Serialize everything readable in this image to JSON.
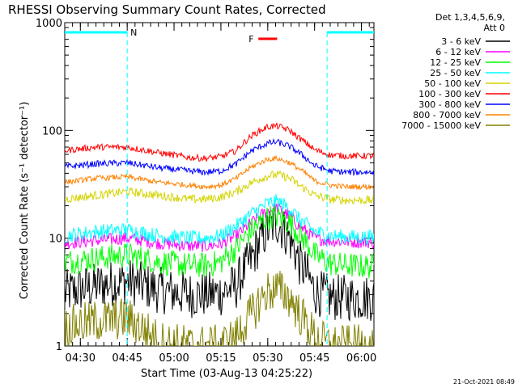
{
  "chart_data": {
    "type": "line",
    "title": "RHESSI Observing Summary Count Rates, Corrected",
    "xlabel": "Start Time (03-Aug-13 04:25:22)",
    "ylabel": "Corrected Count Rate (s⁻¹ detector⁻¹)",
    "yscale": "log",
    "ylim": [
      1,
      1000
    ],
    "y_ticks": [
      {
        "value": 1,
        "label": "1"
      },
      {
        "value": 10,
        "label": "10"
      },
      {
        "value": 100,
        "label": "100"
      },
      {
        "value": 1000,
        "label": "1000"
      }
    ],
    "xlim_minutes": [
      0,
      99
    ],
    "x_ticks": [
      {
        "minute": 5,
        "label": "04:30"
      },
      {
        "minute": 20,
        "label": "04:45"
      },
      {
        "minute": 35,
        "label": "05:00"
      },
      {
        "minute": 50,
        "label": "05:15"
      },
      {
        "minute": 65,
        "label": "05:30"
      },
      {
        "minute": 80,
        "label": "05:45"
      },
      {
        "minute": 95,
        "label": "06:00"
      }
    ],
    "legend_header": [
      "Det 1,3,4,5,6,9,",
      "Att 0"
    ],
    "series": [
      {
        "name": "3 - 6 keV",
        "color": "#000000",
        "noise": 0.22,
        "x": [
          0,
          10,
          20,
          30,
          40,
          45,
          50,
          55,
          60,
          65,
          68,
          72,
          75,
          80,
          85,
          90,
          95,
          99
        ],
        "y": [
          3.1,
          3.6,
          4.0,
          3.3,
          3.0,
          3.0,
          3.1,
          3.6,
          6.5,
          12,
          14,
          10,
          6.0,
          3.2,
          2.8,
          2.8,
          2.8,
          2.8
        ]
      },
      {
        "name": "6 - 12 keV",
        "color": "#ff00ff",
        "noise": 0.06,
        "x": [
          0,
          10,
          20,
          30,
          40,
          45,
          50,
          55,
          60,
          65,
          68,
          72,
          75,
          80,
          85,
          90,
          95,
          99
        ],
        "y": [
          9.0,
          9.5,
          10.0,
          9.0,
          8.5,
          8.5,
          8.8,
          10.5,
          14,
          18,
          19,
          16,
          13,
          10,
          9.5,
          9.3,
          9.2,
          9.2
        ]
      },
      {
        "name": "12 - 25 keV",
        "color": "#00ff00",
        "noise": 0.12,
        "x": [
          0,
          10,
          20,
          30,
          40,
          45,
          50,
          55,
          60,
          65,
          68,
          72,
          75,
          80,
          85,
          90,
          95,
          99
        ],
        "y": [
          6.0,
          6.5,
          7.0,
          6.0,
          5.6,
          5.6,
          6.0,
          8.0,
          12,
          15.5,
          16,
          14,
          11,
          7.0,
          5.8,
          5.6,
          5.5,
          5.5
        ]
      },
      {
        "name": "25 - 50 keV",
        "color": "#00ffff",
        "noise": 0.07,
        "x": [
          0,
          10,
          20,
          30,
          40,
          45,
          50,
          55,
          60,
          65,
          68,
          72,
          75,
          80,
          85,
          90,
          95,
          99
        ],
        "y": [
          10.5,
          11.5,
          12.0,
          10.5,
          10.0,
          10.0,
          10.5,
          13,
          17,
          21,
          22,
          19,
          15,
          11.5,
          10.5,
          10.3,
          10.2,
          10.2
        ]
      },
      {
        "name": "50 - 100 keV",
        "color": "#d4d400",
        "noise": 0.04,
        "x": [
          0,
          10,
          20,
          30,
          40,
          45,
          50,
          55,
          60,
          65,
          68,
          72,
          75,
          80,
          85,
          90,
          95,
          99
        ],
        "y": [
          23,
          25,
          27,
          25,
          23,
          23,
          24,
          27,
          33,
          38,
          39,
          36,
          31,
          25,
          23,
          22.5,
          22.5,
          22.5
        ]
      },
      {
        "name": "100 - 300 keV",
        "color": "#ff0000",
        "noise": 0.03,
        "x": [
          0,
          10,
          20,
          30,
          40,
          45,
          50,
          55,
          60,
          65,
          68,
          72,
          75,
          80,
          85,
          90,
          95,
          99
        ],
        "y": [
          65,
          70,
          70,
          62,
          56,
          55,
          57,
          65,
          90,
          108,
          110,
          100,
          85,
          66,
          59,
          58,
          58,
          58
        ]
      },
      {
        "name": "300 - 800 keV",
        "color": "#0000ff",
        "noise": 0.03,
        "x": [
          0,
          10,
          20,
          30,
          40,
          45,
          50,
          55,
          60,
          65,
          68,
          72,
          75,
          80,
          85,
          90,
          95,
          99
        ],
        "y": [
          46,
          49,
          50,
          45,
          42,
          41,
          42,
          49,
          65,
          76,
          78,
          71,
          62,
          47,
          42,
          41,
          41,
          41
        ]
      },
      {
        "name": "800 - 7000 keV",
        "color": "#ff8000",
        "noise": 0.025,
        "x": [
          0,
          10,
          20,
          30,
          40,
          45,
          50,
          55,
          60,
          65,
          68,
          72,
          75,
          80,
          85,
          90,
          95,
          99
        ],
        "y": [
          33,
          36,
          37,
          33,
          31,
          30,
          31,
          36,
          46,
          54,
          55,
          50,
          44,
          34,
          31,
          30,
          30,
          30
        ]
      },
      {
        "name": "7000 - 15000 keV",
        "color": "#808000",
        "noise": 0.2,
        "x": [
          0,
          10,
          20,
          30,
          40,
          45,
          50,
          55,
          60,
          65,
          68,
          72,
          75,
          80,
          85,
          90,
          95,
          99
        ],
        "y": [
          1.5,
          1.7,
          1.8,
          1.1,
          1.0,
          1.0,
          1.0,
          1.2,
          2.0,
          3.2,
          3.4,
          2.8,
          2.0,
          1.2,
          1.0,
          1.0,
          1.0,
          1.0
        ]
      }
    ],
    "annotations": {
      "night": {
        "label": "N",
        "color": "#00ffff",
        "periods": [
          {
            "start": 0,
            "end": 20
          },
          {
            "start": 84,
            "end": 99
          }
        ]
      },
      "flare": {
        "label": "F",
        "color": "#ff0000",
        "start": 62,
        "end": 68
      }
    },
    "footer_date": "21-Oct-2021 08:49"
  }
}
